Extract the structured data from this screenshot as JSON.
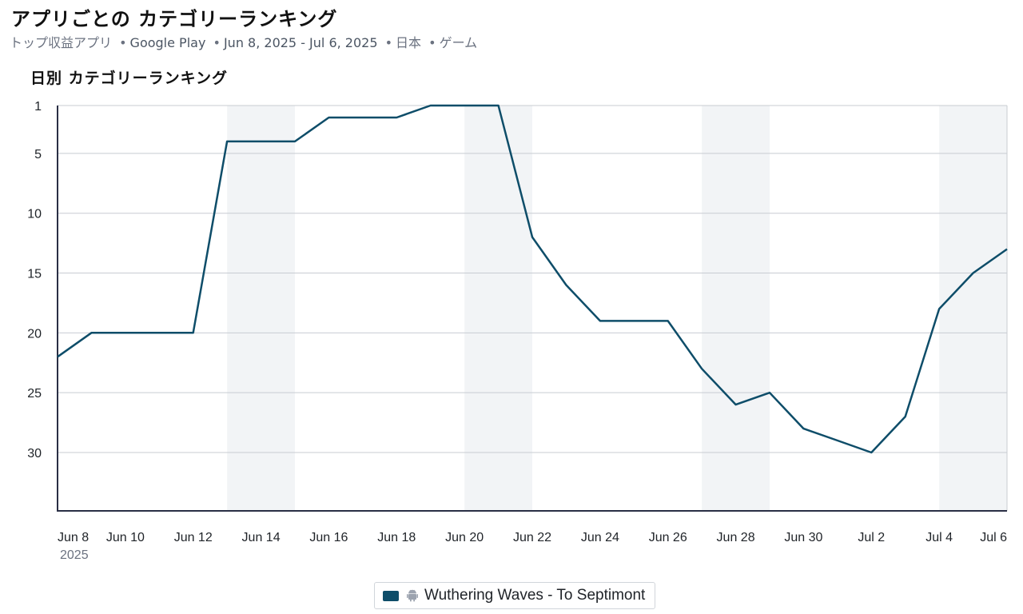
{
  "page": {
    "title": "アプリごとの カテゴリーランキング",
    "subtitle": {
      "chart_kind": "トップ収益アプリ",
      "store": "Google Play",
      "date_range": "Jun 8, 2025 - Jul 6, 2025",
      "country": "日本",
      "category": "ゲーム",
      "separator": "•"
    }
  },
  "chart_title": "日別 カテゴリーランキング",
  "colors": {
    "line": "#0e4d69",
    "grid": "#c8ccd2",
    "weekend_band": "#f2f4f6",
    "axis": "#2a2f45"
  },
  "legend": {
    "label": "Wuthering Waves - To Septimont",
    "icon": "android-icon"
  },
  "chart_data": {
    "type": "line",
    "title": "日別 カテゴリーランキング",
    "xlabel": "",
    "ylabel": "",
    "y_inverted": true,
    "ylim": [
      1,
      34
    ],
    "y_ticks": [
      1,
      5,
      10,
      15,
      20,
      25,
      30
    ],
    "x_start": "2025-06-08",
    "x_end": "2025-07-06",
    "x_ticks": [
      {
        "date": "2025-06-08",
        "label": "Jun 8",
        "sublabel": "2025"
      },
      {
        "date": "2025-06-10",
        "label": "Jun 10"
      },
      {
        "date": "2025-06-12",
        "label": "Jun 12"
      },
      {
        "date": "2025-06-14",
        "label": "Jun 14"
      },
      {
        "date": "2025-06-16",
        "label": "Jun 16"
      },
      {
        "date": "2025-06-18",
        "label": "Jun 18"
      },
      {
        "date": "2025-06-20",
        "label": "Jun 20"
      },
      {
        "date": "2025-06-22",
        "label": "Jun 22"
      },
      {
        "date": "2025-06-24",
        "label": "Jun 24"
      },
      {
        "date": "2025-06-26",
        "label": "Jun 26"
      },
      {
        "date": "2025-06-28",
        "label": "Jun 28"
      },
      {
        "date": "2025-06-30",
        "label": "Jun 30"
      },
      {
        "date": "2025-07-02",
        "label": "Jul 2"
      },
      {
        "date": "2025-07-04",
        "label": "Jul 4"
      },
      {
        "date": "2025-07-06",
        "label": "Jul 6"
      }
    ],
    "weekend_bands": [
      [
        "2025-06-13",
        "2025-06-15"
      ],
      [
        "2025-06-20",
        "2025-06-22"
      ],
      [
        "2025-06-27",
        "2025-06-29"
      ],
      [
        "2025-07-04",
        "2025-07-06"
      ]
    ],
    "series": [
      {
        "name": "Wuthering Waves - To Septimont",
        "platform": "android",
        "x": [
          "2025-06-08",
          "2025-06-09",
          "2025-06-10",
          "2025-06-11",
          "2025-06-12",
          "2025-06-13",
          "2025-06-14",
          "2025-06-15",
          "2025-06-16",
          "2025-06-17",
          "2025-06-18",
          "2025-06-19",
          "2025-06-20",
          "2025-06-21",
          "2025-06-22",
          "2025-06-23",
          "2025-06-24",
          "2025-06-25",
          "2025-06-26",
          "2025-06-27",
          "2025-06-28",
          "2025-06-29",
          "2025-06-30",
          "2025-07-01",
          "2025-07-02",
          "2025-07-03",
          "2025-07-04",
          "2025-07-05",
          "2025-07-06"
        ],
        "values": [
          22,
          20,
          20,
          20,
          20,
          4,
          4,
          4,
          2,
          2,
          2,
          1,
          1,
          1,
          12,
          16,
          19,
          19,
          19,
          23,
          26,
          25,
          28,
          29,
          30,
          27,
          18,
          15,
          13
        ]
      }
    ],
    "legend_position": "bottom-center",
    "grid": true
  }
}
